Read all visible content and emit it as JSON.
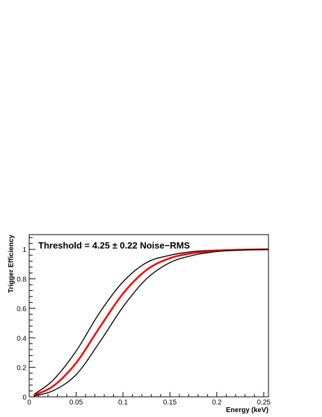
{
  "chart_data": {
    "type": "line",
    "title": "",
    "annotation": "Threshold = 4.25 ± 0.22 Noise−RMS",
    "xlabel": "Energy (keV)",
    "ylabel": "Trigger Efficiency",
    "xlim": [
      0,
      0.255
    ],
    "ylim": [
      0,
      1.1
    ],
    "x_ticks": [
      0,
      0.05,
      0.1,
      0.15,
      0.2,
      0.25
    ],
    "x_tick_labels": [
      "0",
      "0.05",
      "0.1",
      "0.15",
      "0.2",
      "0.25"
    ],
    "y_ticks": [
      0,
      0.2,
      0.4,
      0.6,
      0.8,
      1
    ],
    "y_tick_labels": [
      "0",
      "0.2",
      "0.4",
      "0.6",
      "0.8",
      "1"
    ],
    "grid": false,
    "legend": "none",
    "x": [
      0.005,
      0.025,
      0.05,
      0.075,
      0.1,
      0.125,
      0.15,
      0.175,
      0.2,
      0.225,
      0.255
    ],
    "series": [
      {
        "color": "#000000",
        "values": [
          0.015,
          0.11,
          0.31,
          0.57,
          0.78,
          0.91,
          0.96,
          0.985,
          0.995,
          0.999,
          1.0
        ]
      },
      {
        "color": "#ff0000",
        "values": [
          0.01,
          0.07,
          0.23,
          0.47,
          0.7,
          0.86,
          0.94,
          0.975,
          0.99,
          0.997,
          1.0
        ]
      },
      {
        "color": "#000000",
        "values": [
          0.005,
          0.04,
          0.15,
          0.37,
          0.61,
          0.8,
          0.91,
          0.96,
          0.985,
          0.995,
          1.0
        ]
      }
    ]
  }
}
